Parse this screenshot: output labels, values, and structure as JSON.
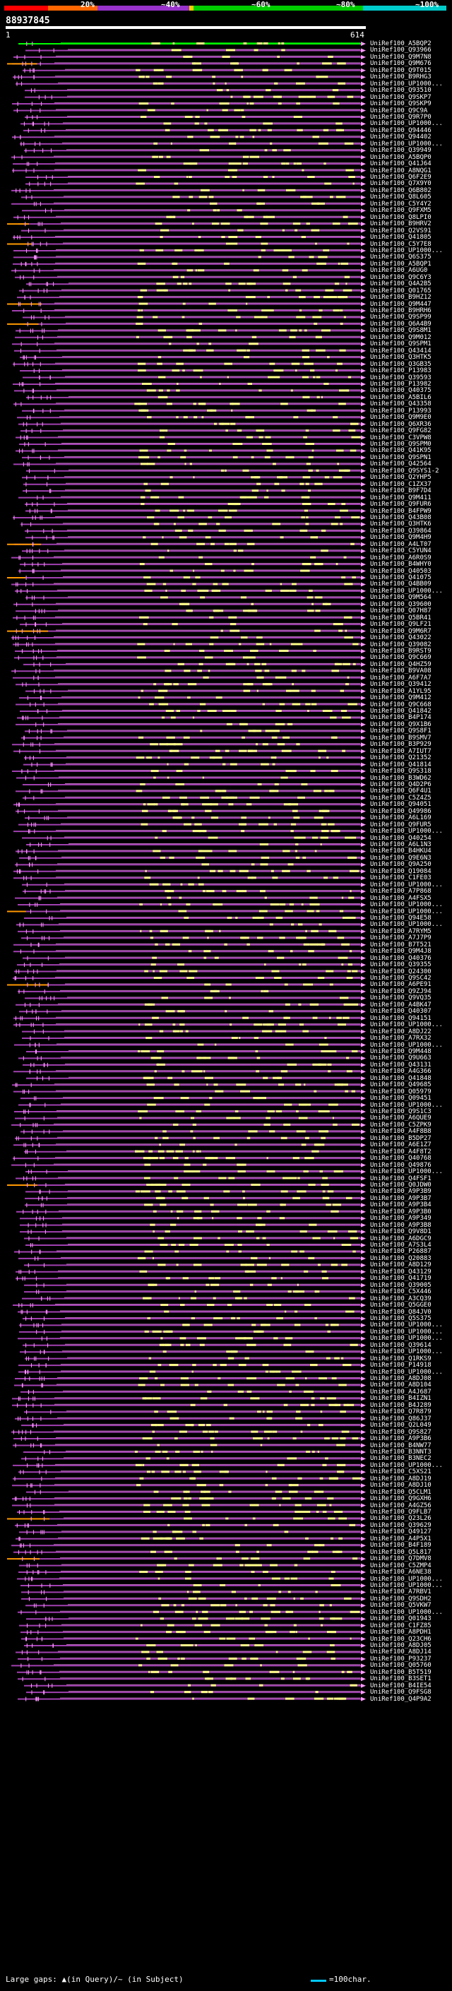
{
  "scale": {
    "colors": [
      "#ff0000",
      "#ff6600",
      "#9933cc",
      "#ffcc00",
      "#00cc00",
      "#00cccc"
    ],
    "labels": [
      "20%",
      "~40%",
      "~60%",
      "~80%",
      "~100%"
    ]
  },
  "query": {
    "id": "88937845",
    "start": "1",
    "end": "614"
  },
  "hit_colors": {
    "line": "#a040b0",
    "highlight": "#ff99ff",
    "gap": "#ff9900",
    "first": "#00ff00",
    "segment": "#ffff88"
  },
  "hits": [
    "UniRef100_A5BQP2",
    "UniRef100_Q93966",
    "UniRef100_Q9M7N8",
    "UniRef100_Q9M676",
    "UniRef100_Q9T015",
    "UniRef100_B9RHG3",
    "UniRef100_UP1000...",
    "UniRef100_Q93510",
    "UniRef100_Q9SKP7",
    "UniRef100_Q9SKP9",
    "UniRef100_Q9C9A",
    "UniRef100_Q9R7P0",
    "UniRef100_UP1000...",
    "UniRef100_Q94446",
    "UniRef100_Q94402",
    "UniRef100_UP1000...",
    "UniRef100_Q39949",
    "UniRef100_A5BQP0",
    "UniRef100_Q41J64",
    "UniRef100_A8NQG1",
    "UniRef100_Q6F2E9",
    "UniRef100_Q7X9Y0",
    "UniRef100_Q6B802",
    "UniRef100_Q8L605",
    "UniRef100_C5Y4Y2",
    "UniRef100_Q9FXM5",
    "UniRef100_Q8LPI0",
    "UniRef100_B9HRV2",
    "UniRef100_Q2VS91",
    "UniRef100_Q41805",
    "UniRef100_C5Y7E8",
    "UniRef100_UP1000...",
    "UniRef100_Q6S375",
    "UniRef100_A5BQP1",
    "UniRef100_A6UG0",
    "UniRef100_Q9C6Y3",
    "UniRef100_Q4A2B5",
    "UniRef100_Q01765",
    "UniRef100_B9HZ12",
    "UniRef100_Q9M447",
    "UniRef100_B9HRH6",
    "UniRef100_Q9SP99",
    "UniRef100_Q6A4B9",
    "UniRef100_Q9S8M1",
    "UniRef100_Q9M012",
    "UniRef100_Q9SPM1",
    "UniRef100_Q43414",
    "UniRef100_Q3HTK5",
    "UniRef100_Q3GB35",
    "UniRef100_P13983",
    "UniRef100_Q39593",
    "UniRef100_P13982",
    "UniRef100_Q40375",
    "UniRef100_A5BIL6",
    "UniRef100_Q43358",
    "UniRef100_P13993",
    "UniRef100_Q9M9E0",
    "UniRef100_Q6XR36",
    "UniRef100_Q9FG82",
    "UniRef100_C3VPW8",
    "UniRef100_Q9SPM0",
    "UniRef100_Q41K95",
    "UniRef100_Q9SPN1",
    "UniRef100_Q42564",
    "UniRef100_Q9SYS1-2",
    "UniRef100_Q2YHP5",
    "UniRef100_C1ZX37",
    "UniRef100_B9F7D4",
    "UniRef100_Q9M411",
    "UniRef100_Q9FUR6",
    "UniRef100_B4FPW9",
    "UniRef100_Q43B08",
    "UniRef100_Q3HTK6",
    "UniRef100_Q39864",
    "UniRef100_Q9M4H9",
    "UniRef100_A4LT07",
    "UniRef100_C5YUN4",
    "UniRef100_A6R0S9",
    "UniRef100_B4WHY0",
    "UniRef100_Q40503",
    "UniRef100_Q41075",
    "UniRef100_Q4BB09",
    "UniRef100_UP1000...",
    "UniRef100_Q9M564",
    "UniRef100_Q39600",
    "UniRef100_Q07H87",
    "UniRef100_Q5BR41",
    "UniRef100_Q9LF21",
    "UniRef100_Q9M6R7",
    "UniRef100_Q43022",
    "UniRef100_Q39082",
    "UniRef100_B9RST9",
    "UniRef100_Q9C669",
    "UniRef100_Q4HZ59",
    "UniRef100_B9VA08",
    "UniRef100_A6F7A7",
    "UniRef100_Q39412",
    "UniRef100_A1YL95",
    "UniRef100_Q9M412",
    "UniRef100_Q9C668",
    "UniRef100_Q41842",
    "UniRef100_B4P174",
    "UniRef100_Q9X1B6",
    "UniRef100_Q9S8F1",
    "UniRef100_B9SMV7",
    "UniRef100_B3P929",
    "UniRef100_A7IUT7",
    "UniRef100_Q21352",
    "UniRef100_Q41814",
    "UniRef100_Q9S318",
    "UniRef100_B3WD62",
    "UniRef100_Q4D2P6",
    "UniRef100_Q6F4U1",
    "UniRef100_C5Z4Z5",
    "UniRef100_Q94051",
    "UniRef100_Q49986",
    "UniRef100_A6L169",
    "UniRef100_Q9FUR5",
    "UniRef100_UP1000...",
    "UniRef100_Q40254",
    "UniRef100_A6L1N3",
    "UniRef100_B4HKU4",
    "UniRef100_Q9E6N3",
    "UniRef100_Q9A250",
    "UniRef100_Q19084",
    "UniRef100_C1FE03",
    "UniRef100_UP1000...",
    "UniRef100_A7P868",
    "UniRef100_A4FSX5",
    "UniRef100_UP1000...",
    "UniRef100_UP1000...",
    "UniRef100_Q94E58",
    "UniRef100_UP1000...",
    "UniRef100_A7RYM5",
    "UniRef100_A7J7P9",
    "UniRef100_B7T521",
    "UniRef100_Q9M4J8",
    "UniRef100_Q40376",
    "UniRef100_Q39355",
    "UniRef100_Q24300",
    "UniRef100_Q9SC42",
    "UniRef100_A6PE91",
    "UniRef100_Q9ZJ94",
    "UniRef100_Q9VQ35",
    "UniRef100_A4BK47",
    "UniRef100_Q40307",
    "UniRef100_Q94151",
    "UniRef100_UP1000...",
    "UniRef100_A8DJ22",
    "UniRef100_A7RX32",
    "UniRef100_UP1000...",
    "UniRef100_Q9M448",
    "UniRef100_Q9U663",
    "UniRef100_Q43131",
    "UniRef100_A4G366",
    "UniRef100_Q41848",
    "UniRef100_Q49685",
    "UniRef100_Q05979",
    "UniRef100_Q09451",
    "UniRef100_UP1000...",
    "UniRef100_Q9S1C3",
    "UniRef100_A6QUE9",
    "UniRef100_C5ZPK9",
    "UniRef100_A4F8B8",
    "UniRef100_B5DP27",
    "UniRef100_A6E1Z7",
    "UniRef100_A4F8T2",
    "UniRef100_Q40768",
    "UniRef100_Q49876",
    "UniRef100_UP1000...",
    "UniRef100_Q4FSF1",
    "UniRef100_Q0JDW0",
    "UniRef100_A9P3B9",
    "UniRef100_A9P3B7",
    "UniRef100_A9P3B4",
    "UniRef100_A9P3B0",
    "UniRef100_A9P349",
    "UniRef100_A9P3B8",
    "UniRef100_Q9V8D1",
    "UniRef100_A6DGC9",
    "UniRef100_A7S3L4",
    "UniRef100_P26887",
    "UniRef100_Q20883",
    "UniRef100_A8D129",
    "UniRef100_Q43129",
    "UniRef100_Q41719",
    "UniRef100_Q39005",
    "UniRef100_C5X446",
    "UniRef100_A3CQ39",
    "UniRef100_Q5GGE0",
    "UniRef100_Q84JV0",
    "UniRef100_Q5S375",
    "UniRef100_UP1000...",
    "UniRef100_UP1000...",
    "UniRef100_UP1000...",
    "UniRef100_Q39614",
    "UniRef100_UP1000...",
    "UniRef100_Q1RKS9",
    "UniRef100_P14918",
    "UniRef100_UP1000...",
    "UniRef100_A8DJ08",
    "UniRef100_A8D104",
    "UniRef100_A4J687",
    "UniRef100_B4IZN1",
    "UniRef100_B4J289",
    "UniRef100_Q7R879",
    "UniRef100_Q86J37",
    "UniRef100_Q2L049",
    "UniRef100_Q9S827",
    "UniRef100_A9P3B6",
    "UniRef100_B4NW77",
    "UniRef100_B3NNT3",
    "UniRef100_B3NEC2",
    "UniRef100_UP1000...",
    "UniRef100_C5XS21",
    "UniRef100_A8DJ19",
    "UniRef100_A8DJ10",
    "UniRef100_Q5CLM1",
    "UniRef100_Q9GXH6",
    "UniRef100_A4GZ56",
    "UniRef100_Q9FLB7",
    "UniRef100_Q23L26",
    "UniRef100_Q39629",
    "UniRef100_Q49127",
    "UniRef100_A4P5X1",
    "UniRef100_B4F189",
    "UniRef100_Q5L817",
    "UniRef100_Q7DMV8",
    "UniRef100_C5ZMP4",
    "UniRef100_A6NE38",
    "UniRef100_UP1000...",
    "UniRef100_UP1000...",
    "UniRef100_A7RBV1",
    "UniRef100_Q9SDH2",
    "UniRef100_Q5VKW7",
    "UniRef100_UP1000...",
    "UniRef100_Q01943",
    "UniRef100_C1FZ85",
    "UniRef100_A8PDH1",
    "UniRef100_Q23CH6",
    "UniRef100_A8DJ05",
    "UniRef100_A8DJ14",
    "UniRef100_P93237",
    "UniRef100_Q05760",
    "UniRef100_B5T519",
    "UniRef100_B3SET1",
    "UniRef100_B4IE54",
    "UniRef100_Q9FSG8",
    "UniRef100_Q4P9A2"
  ],
  "legend": {
    "text": "Large gaps: ▲(in Query)/~ (in Subject)",
    "scale": "=100char."
  }
}
